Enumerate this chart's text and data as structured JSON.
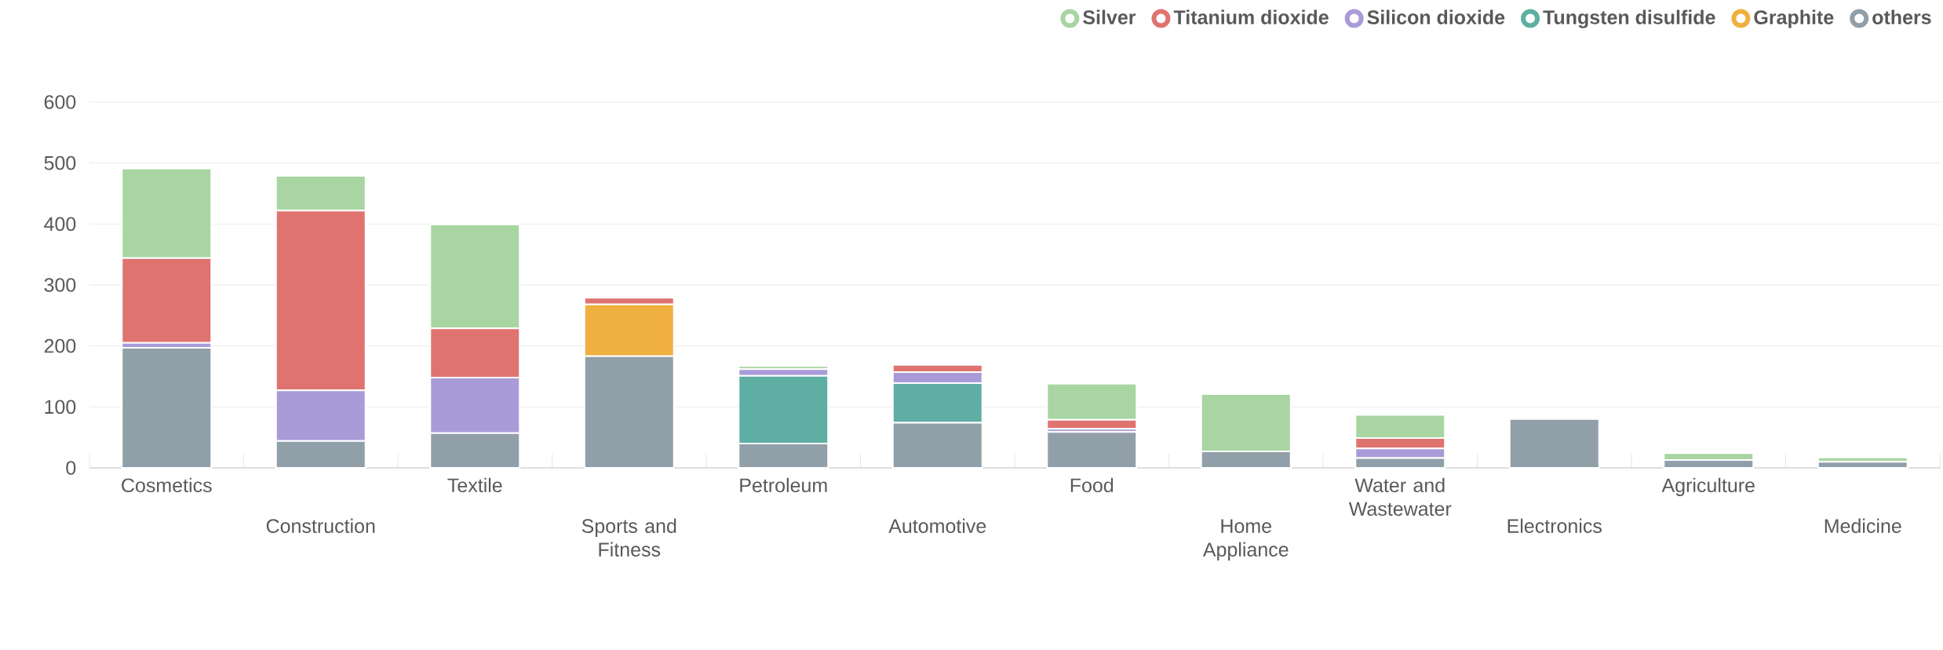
{
  "chart_data": {
    "type": "bar",
    "stacked": true,
    "categories": [
      "Cosmetics",
      "Construction",
      "Textile",
      "Sports and Fitness",
      "Petroleum",
      "Automotive",
      "Food",
      "Home Appliance",
      "Water and Wastewater",
      "Electronics",
      "Agriculture",
      "Medicine"
    ],
    "series": [
      {
        "name": "others",
        "color": "#919fa9",
        "values": [
          197,
          44,
          57,
          183,
          40,
          74,
          59,
          27,
          16,
          80,
          13,
          10
        ]
      },
      {
        "name": "Graphite",
        "color": "#f0b03f",
        "values": [
          null,
          null,
          null,
          85,
          null,
          null,
          null,
          null,
          null,
          null,
          null,
          null
        ]
      },
      {
        "name": "Tungsten disulfide",
        "color": "#5eaea3",
        "values": [
          null,
          null,
          null,
          null,
          111,
          65,
          null,
          null,
          null,
          null,
          null,
          null
        ]
      },
      {
        "name": "Silicon dioxide",
        "color": "#a99bd8",
        "values": [
          8,
          83,
          91,
          null,
          11,
          18,
          5,
          null,
          16,
          null,
          null,
          null
        ]
      },
      {
        "name": "Titanium dioxide",
        "color": "#df7370",
        "values": [
          139,
          295,
          81,
          11,
          null,
          12,
          15,
          null,
          17,
          null,
          null,
          null
        ]
      },
      {
        "name": "Silver",
        "color": "#a8d5a2",
        "values": [
          147,
          57,
          170,
          null,
          5,
          null,
          59,
          94,
          38,
          null,
          11,
          7
        ]
      }
    ],
    "ylim": [
      0,
      600
    ],
    "yticks": [
      0,
      100,
      200,
      300,
      400,
      500,
      600
    ],
    "grid": "y",
    "legend": "top right"
  }
}
